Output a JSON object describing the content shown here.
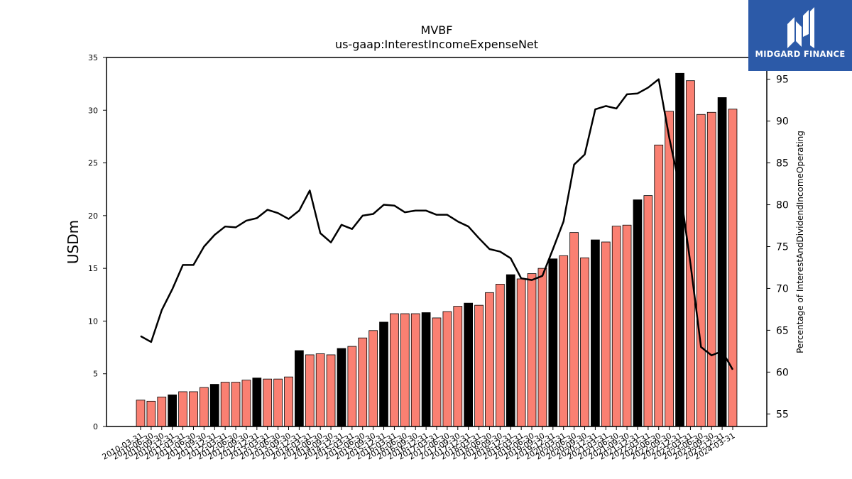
{
  "chart_data": {
    "type": "bar",
    "title": "MVBF",
    "subtitle": "us-gaap:InterestIncomeExpenseNet",
    "ylabel": "USDm",
    "y2label": "Percentage of InterestAndDividendIncomeOperating",
    "ylim": [
      0,
      35
    ],
    "y2lim": [
      53.5,
      97.6
    ],
    "yticks": [
      0,
      5,
      10,
      15,
      20,
      25,
      30,
      35
    ],
    "y2ticks": [
      55,
      60,
      65,
      70,
      75,
      80,
      85,
      90,
      95
    ],
    "categories": [
      "2010-03-31",
      "2010-06-30",
      "2010-09-30",
      "2010-12-31",
      "2011-03-31",
      "2011-06-30",
      "2011-09-30",
      "2011-12-31",
      "2012-03-31",
      "2012-06-30",
      "2012-09-30",
      "2012-12-31",
      "2013-03-31",
      "2013-06-30",
      "2013-09-30",
      "2013-12-31",
      "2014-03-31",
      "2014-06-30",
      "2014-09-30",
      "2014-12-31",
      "2015-03-31",
      "2015-06-30",
      "2015-09-30",
      "2015-12-31",
      "2016-03-31",
      "2016-06-30",
      "2016-09-30",
      "2016-12-31",
      "2017-03-31",
      "2017-06-30",
      "2017-09-30",
      "2017-12-31",
      "2018-03-31",
      "2018-06-30",
      "2018-09-30",
      "2018-12-31",
      "2019-03-31",
      "2019-06-30",
      "2019-09-30",
      "2019-12-31",
      "2020-03-31",
      "2020-06-30",
      "2020-09-30",
      "2020-12-31",
      "2021-03-31",
      "2021-06-30",
      "2021-09-30",
      "2021-12-31",
      "2022-03-31",
      "2022-06-30",
      "2022-09-30",
      "2022-12-31",
      "2023-03-31",
      "2023-06-30",
      "2023-09-30",
      "2023-12-31",
      "2024-03-31"
    ],
    "series": [
      {
        "type": "bar",
        "values": [
          2.5,
          2.4,
          2.8,
          3.0,
          3.3,
          3.3,
          3.7,
          4.0,
          4.2,
          4.2,
          4.4,
          4.6,
          4.5,
          4.5,
          4.7,
          7.2,
          6.8,
          6.9,
          6.8,
          7.4,
          7.6,
          8.4,
          9.1,
          9.9,
          10.7,
          10.7,
          10.7,
          10.8,
          10.3,
          10.9,
          11.4,
          11.7,
          11.5,
          12.7,
          13.5,
          14.4,
          14.0,
          14.5,
          15.0,
          15.9,
          16.2,
          18.4,
          16.0,
          17.7,
          17.5,
          19.0,
          19.1,
          21.5,
          21.9,
          26.7,
          29.9,
          33.5,
          32.8,
          29.6,
          29.8,
          31.2,
          30.1
        ],
        "colors": {
          "default": "#fa8072",
          "year_end": "#000000"
        }
      },
      {
        "type": "line",
        "color": "#000000",
        "values": [
          64.3,
          63.6,
          67.4,
          69.9,
          72.8,
          72.8,
          75.0,
          76.4,
          77.4,
          77.3,
          78.1,
          78.4,
          79.4,
          79.0,
          78.3,
          79.3,
          81.7,
          76.6,
          75.5,
          77.6,
          77.1,
          78.7,
          78.9,
          80.0,
          79.9,
          79.1,
          79.3,
          79.3,
          78.8,
          78.8,
          78.0,
          77.4,
          76.0,
          74.7,
          74.4,
          73.6,
          71.2,
          71.0,
          71.5,
          74.7,
          78.0,
          84.8,
          86.0,
          91.4,
          91.8,
          91.5,
          93.2,
          93.3,
          94.0,
          95.0,
          88.0,
          82.0,
          73.0,
          63.0,
          62.0,
          62.5,
          60.3
        ]
      }
    ],
    "grid": false,
    "legend": "none"
  },
  "logo": {
    "text": "MIDGARD FINANCE"
  }
}
